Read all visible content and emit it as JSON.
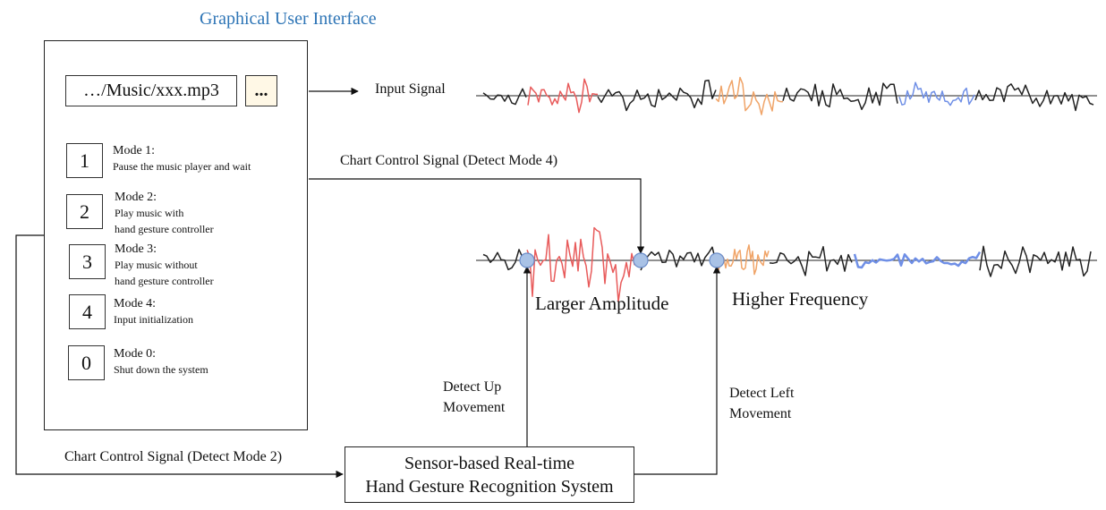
{
  "gui": {
    "title": "Graphical User Interface",
    "file_path": "…/Music/xxx.mp3",
    "browse_label": "...",
    "modes": [
      {
        "key": "1",
        "label": "Mode 1:",
        "desc": "Pause the music player and wait"
      },
      {
        "key": "2",
        "label": "Mode 2:",
        "desc": "Play music with\nhand gesture controller"
      },
      {
        "key": "3",
        "label": "Mode 3:",
        "desc": "Play music without\nhand gesture controller"
      },
      {
        "key": "4",
        "label": "Mode 4:",
        "desc": "Input initialization"
      },
      {
        "key": "0",
        "label": "Mode 0:",
        "desc": "Shut down the system"
      }
    ]
  },
  "signals": {
    "input_label": "Input Signal",
    "control_mode4": "Chart Control Signal (Detect Mode 4)",
    "control_mode2": "Chart Control Signal (Detect Mode 2)",
    "larger_amplitude": "Larger Amplitude",
    "higher_frequency": "Higher Frequency"
  },
  "gestures": {
    "up": "Detect Up\nMovement",
    "left": "Detect Left\nMovement"
  },
  "system": {
    "line1": "Sensor-based Real-time",
    "line2": "Hand Gesture Recognition System"
  },
  "colors": {
    "accent_blue": "#2e75b6",
    "segment_red": "#e85b5b",
    "segment_orange": "#f0a468",
    "segment_blue": "#6f8fe6",
    "marker_fill": "#a9c2e6",
    "marker_stroke": "#6a8cc9",
    "button_fill": "#fff8e6"
  }
}
